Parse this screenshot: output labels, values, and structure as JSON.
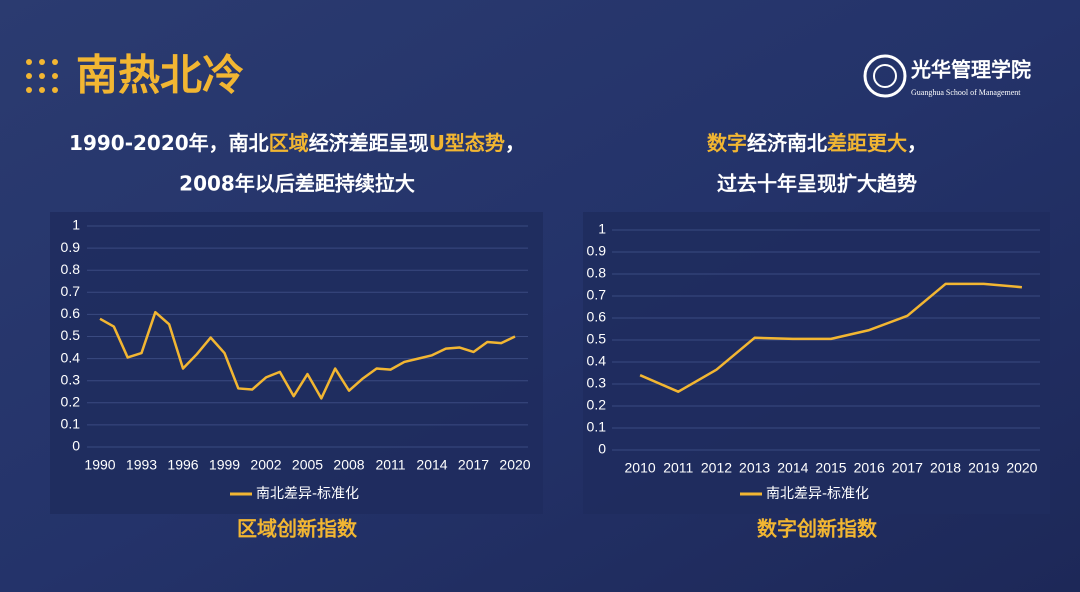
{
  "header": {
    "title": "南热北冷",
    "logo_cn": "光华管理学院",
    "logo_en": "Guanghua School of Management"
  },
  "headings": [
    {
      "line1": [
        {
          "text": "1990-2020年，南北",
          "highlight": false
        },
        {
          "text": "区域",
          "highlight": true
        },
        {
          "text": "经济差距呈现",
          "highlight": false
        },
        {
          "text": "U型态势",
          "highlight": true
        },
        {
          "text": "，",
          "highlight": false
        }
      ],
      "line2": "2008年以后差距持续拉大"
    },
    {
      "line1": [
        {
          "text": "数字",
          "highlight": true
        },
        {
          "text": "经济南北",
          "highlight": false
        },
        {
          "text": "差距更大",
          "highlight": true
        },
        {
          "text": "，",
          "highlight": false
        }
      ],
      "line2": "过去十年呈现扩大趋势"
    }
  ],
  "chart_data": [
    {
      "type": "line",
      "caption": "区域创新指数",
      "x": [
        1990,
        1991,
        1992,
        1993,
        1994,
        1995,
        1996,
        1997,
        1998,
        1999,
        2000,
        2001,
        2002,
        2003,
        2004,
        2005,
        2006,
        2007,
        2008,
        2009,
        2010,
        2011,
        2012,
        2013,
        2014,
        2015,
        2016,
        2017,
        2018,
        2019,
        2020
      ],
      "xlim": [
        1990,
        2020
      ],
      "xticks": [
        1990,
        1993,
        1996,
        1999,
        2002,
        2005,
        2008,
        2011,
        2014,
        2017,
        2020
      ],
      "series": [
        {
          "name": "南北差异-标准化",
          "color": "#f2b632",
          "values": [
            0.58,
            0.545,
            0.405,
            0.425,
            0.61,
            0.555,
            0.355,
            0.42,
            0.495,
            0.425,
            0.265,
            0.26,
            0.315,
            0.34,
            0.23,
            0.33,
            0.22,
            0.355,
            0.255,
            0.31,
            0.355,
            0.35,
            0.385,
            0.4,
            0.415,
            0.445,
            0.45,
            0.43,
            0.475,
            0.47,
            0.5
          ]
        }
      ],
      "ylim": [
        0,
        1
      ],
      "yticks": [
        0,
        0.1,
        0.2,
        0.3,
        0.4,
        0.5,
        0.6,
        0.7,
        0.8,
        0.9,
        1
      ],
      "grid": true
    },
    {
      "type": "line",
      "caption": "数字创新指数",
      "categories": [
        "2010",
        "2011",
        "2012",
        "2013",
        "2014",
        "2015",
        "2016",
        "2017",
        "2018",
        "2019",
        "2020"
      ],
      "series": [
        {
          "name": "南北差异-标准化",
          "color": "#f2b632",
          "values": [
            0.34,
            0.265,
            0.365,
            0.51,
            0.505,
            0.505,
            0.545,
            0.61,
            0.755,
            0.755,
            0.74
          ]
        }
      ],
      "ylim": [
        0,
        1
      ],
      "yticks": [
        0,
        0.1,
        0.2,
        0.3,
        0.4,
        0.5,
        0.6,
        0.7,
        0.8,
        0.9,
        1
      ],
      "grid": true
    }
  ]
}
